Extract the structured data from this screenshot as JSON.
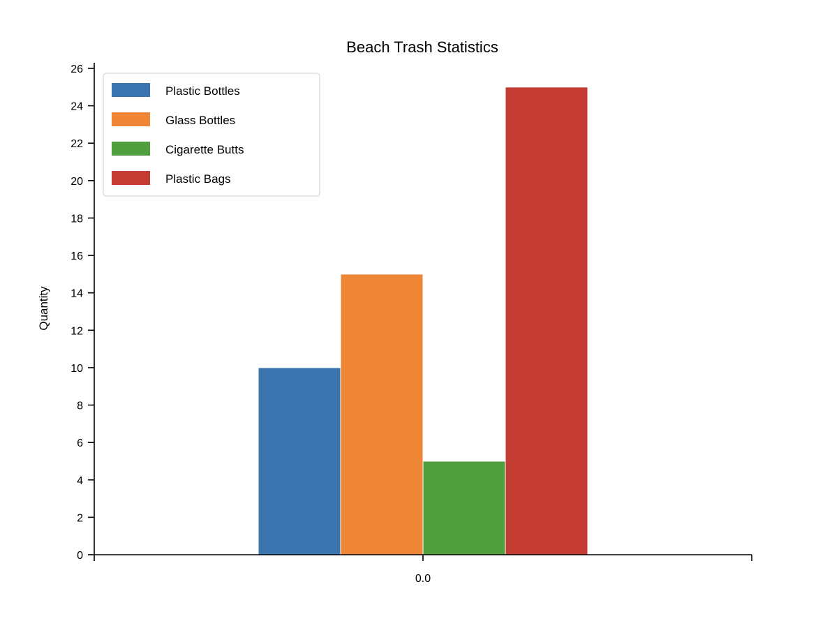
{
  "chart_data": {
    "type": "bar",
    "title": "Beach Trash Statistics",
    "xlabel": "",
    "ylabel": "Quantity",
    "categories": [
      "0.0"
    ],
    "series": [
      {
        "name": "Plastic Bottles",
        "values": [
          10
        ],
        "color": "#3b75af"
      },
      {
        "name": "Glass Bottles",
        "values": [
          15
        ],
        "color": "#ef8636"
      },
      {
        "name": "Cigarette Butts",
        "values": [
          5
        ],
        "color": "#519e3e"
      },
      {
        "name": "Plastic Bags",
        "values": [
          25
        ],
        "color": "#c43b33"
      }
    ],
    "ylim": [
      0,
      26
    ],
    "yticks": [
      0,
      2,
      4,
      6,
      8,
      10,
      12,
      14,
      16,
      18,
      20,
      22,
      24,
      26
    ],
    "grid": false,
    "legend_position": "top-left"
  }
}
